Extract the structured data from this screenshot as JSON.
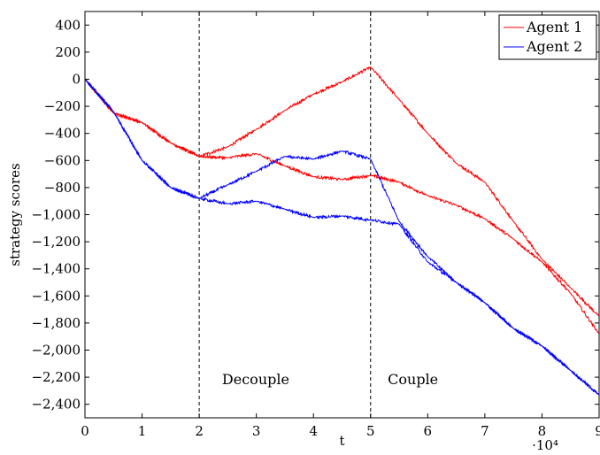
{
  "chart_data": {
    "type": "line",
    "xlabel": "t",
    "ylabel": "strategy scores",
    "x_scale_label": "·10⁴",
    "xlim": [
      0,
      90000
    ],
    "ylim": [
      -2500,
      500
    ],
    "x_ticks": [
      0,
      10000,
      20000,
      30000,
      40000,
      50000,
      60000,
      70000,
      80000,
      90000
    ],
    "x_tick_labels": [
      "0",
      "1",
      "2",
      "3",
      "4",
      "5",
      "6",
      "7",
      "8",
      "9"
    ],
    "y_ticks": [
      400,
      200,
      0,
      -200,
      -400,
      -600,
      -800,
      -1000,
      -1200,
      -1400,
      -1600,
      -1800,
      -2000,
      -2200,
      -2400
    ],
    "y_tick_labels": [
      "400",
      "200",
      "0",
      "−200",
      "−400",
      "−600",
      "−800",
      "−1,000",
      "−1,200",
      "−1,400",
      "−1,600",
      "−1,800",
      "−2,000",
      "−2,200",
      "−2,400"
    ],
    "grid": false,
    "legend_position": "top-right",
    "vlines": [
      20000,
      50000
    ],
    "annotations": [
      {
        "text": "Decouple",
        "x": 24000,
        "y": -2220
      },
      {
        "text": "Couple",
        "x": 53000,
        "y": -2220
      }
    ],
    "series": [
      {
        "name": "Agent 1",
        "color": "#ff0000",
        "show_in_legend": true,
        "x": [
          0,
          5000,
          10000,
          15000,
          20000,
          25000,
          30000,
          35000,
          40000,
          45000,
          50000,
          55000,
          60000,
          65000,
          70000,
          75000,
          80000,
          85000,
          90000
        ],
        "y": [
          0,
          -250,
          -320,
          -470,
          -570,
          -500,
          -370,
          -230,
          -110,
          -20,
          90,
          -150,
          -400,
          -620,
          -760,
          -1050,
          -1330,
          -1540,
          -1750
        ]
      },
      {
        "name": "",
        "color": "#ff0000",
        "show_in_legend": false,
        "x": [
          0,
          5000,
          10000,
          15000,
          20000,
          25000,
          30000,
          35000,
          40000,
          45000,
          50000,
          55000,
          60000,
          65000,
          70000,
          75000,
          80000,
          85000,
          90000
        ],
        "y": [
          0,
          -250,
          -320,
          -470,
          -570,
          -580,
          -550,
          -640,
          -720,
          -740,
          -710,
          -760,
          -860,
          -930,
          -1030,
          -1180,
          -1350,
          -1580,
          -1880
        ]
      },
      {
        "name": "Agent 2",
        "color": "#0000ff",
        "show_in_legend": true,
        "x": [
          0,
          5000,
          10000,
          15000,
          20000,
          25000,
          30000,
          35000,
          40000,
          45000,
          50000,
          55000,
          60000,
          65000,
          70000,
          75000,
          80000,
          85000,
          90000
        ],
        "y": [
          0,
          -240,
          -600,
          -800,
          -880,
          -780,
          -680,
          -570,
          -590,
          -530,
          -590,
          -1050,
          -1310,
          -1500,
          -1650,
          -1840,
          -1970,
          -2150,
          -2330
        ]
      },
      {
        "name": "",
        "color": "#0000ff",
        "show_in_legend": false,
        "x": [
          0,
          5000,
          10000,
          15000,
          20000,
          25000,
          30000,
          35000,
          40000,
          45000,
          50000,
          55000,
          60000,
          65000,
          70000,
          75000,
          80000,
          85000,
          90000
        ],
        "y": [
          0,
          -240,
          -600,
          -800,
          -880,
          -920,
          -900,
          -960,
          -1020,
          -1010,
          -1040,
          -1070,
          -1350,
          -1500,
          -1650,
          -1840,
          -1970,
          -2150,
          -2330
        ]
      }
    ]
  }
}
